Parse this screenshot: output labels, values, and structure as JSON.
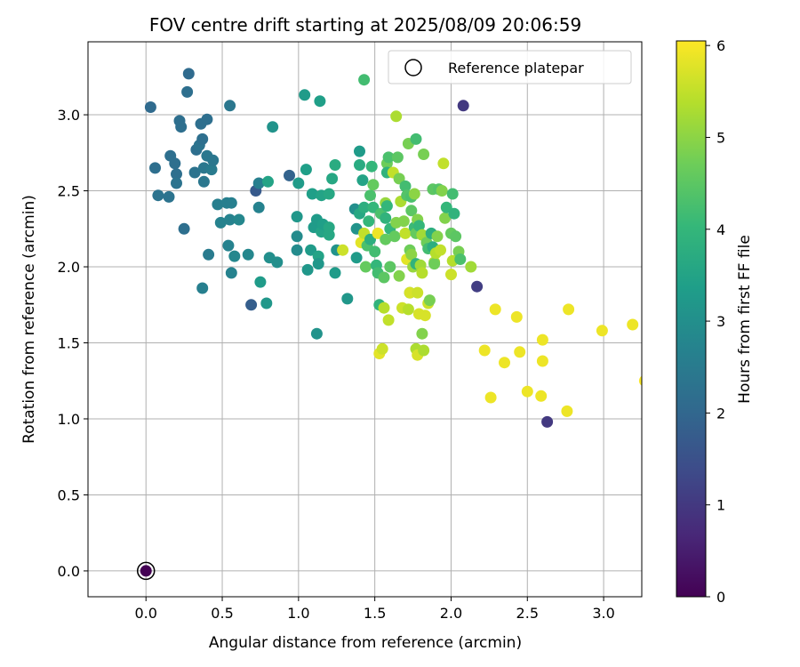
{
  "chart_data": {
    "type": "scatter",
    "title": "FOV centre drift starting at 2025/08/09 20:06:59",
    "xlabel": "Angular distance from reference (arcmin)",
    "ylabel": "Rotation from reference (arcmin)",
    "xlim": [
      -0.38,
      3.25
    ],
    "ylim": [
      -0.17,
      3.48
    ],
    "xticks": [
      "0.0",
      "0.5",
      "1.0",
      "1.5",
      "2.0",
      "2.5",
      "3.0"
    ],
    "xtick_values": [
      0.0,
      0.5,
      1.0,
      1.5,
      2.0,
      2.5,
      3.0
    ],
    "yticks": [
      "0.0",
      "0.5",
      "1.0",
      "1.5",
      "2.0",
      "2.5",
      "3.0"
    ],
    "ytick_values": [
      0.0,
      0.5,
      1.0,
      1.5,
      2.0,
      2.5,
      3.0
    ],
    "grid": true,
    "legend": {
      "position": "top-right",
      "entries": [
        "Reference platepar"
      ]
    },
    "colorbar": {
      "label": "Hours from first FF file",
      "range": [
        0,
        6.05
      ],
      "ticks": [
        "0",
        "1",
        "2",
        "3",
        "4",
        "5",
        "6"
      ],
      "tick_values": [
        0,
        1,
        2,
        3,
        4,
        5,
        6
      ],
      "colormap": "viridis"
    },
    "reference": {
      "x": 0.0,
      "y": 0.0,
      "hours": 0.0
    },
    "points": [
      [
        0.03,
        3.05,
        2.1
      ],
      [
        0.06,
        2.65,
        2.2
      ],
      [
        0.08,
        2.47,
        2.3
      ],
      [
        0.15,
        2.46,
        2.3
      ],
      [
        0.16,
        2.73,
        2.2
      ],
      [
        0.19,
        2.68,
        2.2
      ],
      [
        0.2,
        2.61,
        2.2
      ],
      [
        0.2,
        2.55,
        2.3
      ],
      [
        0.22,
        2.96,
        2.2
      ],
      [
        0.23,
        2.92,
        2.2
      ],
      [
        0.25,
        2.25,
        2.2
      ],
      [
        0.27,
        3.15,
        2.2
      ],
      [
        0.28,
        3.27,
        2.1
      ],
      [
        0.32,
        2.62,
        2.3
      ],
      [
        0.33,
        2.77,
        2.2
      ],
      [
        0.35,
        2.8,
        2.3
      ],
      [
        0.36,
        2.94,
        2.2
      ],
      [
        0.37,
        2.84,
        2.2
      ],
      [
        0.37,
        1.86,
        2.6
      ],
      [
        0.38,
        2.56,
        2.4
      ],
      [
        0.38,
        2.65,
        2.4
      ],
      [
        0.4,
        2.97,
        2.2
      ],
      [
        0.4,
        2.73,
        2.4
      ],
      [
        0.41,
        2.08,
        2.5
      ],
      [
        0.43,
        2.64,
        2.5
      ],
      [
        0.44,
        2.7,
        2.4
      ],
      [
        0.47,
        2.41,
        2.6
      ],
      [
        0.49,
        2.29,
        2.7
      ],
      [
        0.53,
        2.42,
        2.6
      ],
      [
        0.54,
        2.14,
        2.7
      ],
      [
        0.55,
        3.06,
        2.4
      ],
      [
        0.55,
        2.31,
        2.7
      ],
      [
        0.56,
        1.96,
        2.7
      ],
      [
        0.56,
        2.42,
        2.6
      ],
      [
        0.58,
        2.07,
        2.8
      ],
      [
        0.61,
        2.31,
        2.8
      ],
      [
        0.67,
        2.08,
        2.8
      ],
      [
        0.69,
        1.75,
        1.8
      ],
      [
        0.72,
        2.5,
        1.7
      ],
      [
        0.74,
        2.55,
        2.6
      ],
      [
        0.74,
        2.39,
        2.7
      ],
      [
        0.75,
        1.9,
        3.3
      ],
      [
        0.79,
        1.76,
        3.2
      ],
      [
        0.8,
        2.56,
        3.5
      ],
      [
        0.81,
        2.06,
        3.0
      ],
      [
        0.83,
        2.92,
        3.1
      ],
      [
        0.86,
        2.03,
        3.0
      ],
      [
        0.94,
        2.6,
        1.9
      ],
      [
        0.99,
        2.33,
        3.2
      ],
      [
        0.99,
        2.11,
        2.9
      ],
      [
        0.99,
        2.2,
        2.9
      ],
      [
        1.0,
        2.55,
        3.3
      ],
      [
        1.04,
        3.13,
        3.3
      ],
      [
        1.05,
        2.64,
        3.4
      ],
      [
        1.06,
        1.98,
        3.2
      ],
      [
        1.08,
        2.11,
        3.3
      ],
      [
        1.09,
        2.48,
        3.4
      ],
      [
        1.1,
        2.26,
        3.3
      ],
      [
        1.12,
        1.56,
        3.1
      ],
      [
        1.12,
        2.31,
        3.3
      ],
      [
        1.13,
        2.07,
        3.5
      ],
      [
        1.13,
        2.02,
        3.2
      ],
      [
        1.14,
        3.09,
        3.4
      ],
      [
        1.15,
        2.47,
        3.5
      ],
      [
        1.15,
        2.23,
        3.5
      ],
      [
        1.16,
        2.28,
        3.4
      ],
      [
        1.2,
        2.21,
        3.6
      ],
      [
        1.2,
        2.48,
        3.6
      ],
      [
        1.2,
        2.26,
        3.6
      ],
      [
        1.22,
        2.58,
        3.6
      ],
      [
        1.24,
        1.96,
        3.3
      ],
      [
        1.24,
        2.67,
        3.7
      ],
      [
        1.25,
        2.11,
        3.1
      ],
      [
        1.29,
        2.11,
        5.6
      ],
      [
        1.32,
        1.79,
        3.2
      ],
      [
        1.37,
        2.38,
        3.0
      ],
      [
        1.38,
        2.25,
        3.1
      ],
      [
        1.38,
        2.06,
        3.3
      ],
      [
        1.4,
        2.76,
        3.3
      ],
      [
        1.4,
        2.67,
        3.7
      ],
      [
        1.4,
        2.35,
        3.6
      ],
      [
        1.41,
        2.16,
        5.8
      ],
      [
        1.42,
        2.57,
        3.5
      ],
      [
        1.43,
        2.22,
        5.5
      ],
      [
        1.43,
        2.39,
        3.8
      ],
      [
        1.43,
        3.23,
        4.2
      ],
      [
        1.44,
        2.0,
        4.6
      ],
      [
        1.45,
        2.14,
        4.3
      ],
      [
        1.46,
        2.3,
        4.0
      ],
      [
        1.47,
        2.18,
        3.8
      ],
      [
        1.47,
        2.47,
        4.3
      ],
      [
        1.48,
        2.66,
        4.0
      ],
      [
        1.49,
        2.39,
        4.0
      ],
      [
        1.49,
        2.54,
        4.6
      ],
      [
        1.5,
        2.1,
        4.2
      ],
      [
        1.51,
        2.01,
        4.0
      ],
      [
        1.52,
        1.96,
        4.2
      ],
      [
        1.52,
        2.22,
        5.9
      ],
      [
        1.53,
        1.75,
        3.9
      ],
      [
        1.53,
        1.43,
        5.8
      ],
      [
        1.54,
        2.35,
        4.3
      ],
      [
        1.55,
        1.46,
        5.6
      ],
      [
        1.56,
        1.73,
        5.4
      ],
      [
        1.56,
        1.93,
        4.5
      ],
      [
        1.57,
        2.18,
        4.6
      ],
      [
        1.57,
        2.32,
        3.9
      ],
      [
        1.57,
        2.42,
        5.1
      ],
      [
        1.58,
        2.68,
        4.7
      ],
      [
        1.58,
        2.4,
        4.0
      ],
      [
        1.58,
        2.62,
        3.9
      ],
      [
        1.59,
        1.65,
        5.5
      ],
      [
        1.59,
        2.72,
        4.3
      ],
      [
        1.6,
        2.0,
        4.5
      ],
      [
        1.6,
        2.25,
        4.0
      ],
      [
        1.62,
        2.62,
        5.5
      ],
      [
        1.63,
        2.2,
        4.6
      ],
      [
        1.64,
        2.29,
        4.9
      ],
      [
        1.64,
        2.99,
        5.3
      ],
      [
        1.65,
        2.72,
        4.5
      ],
      [
        1.66,
        2.58,
        4.8
      ],
      [
        1.66,
        1.94,
        4.9
      ],
      [
        1.67,
        2.43,
        5.3
      ],
      [
        1.68,
        1.73,
        5.6
      ],
      [
        1.69,
        2.3,
        4.9
      ],
      [
        1.7,
        2.53,
        4.2
      ],
      [
        1.7,
        2.22,
        5.5
      ],
      [
        1.71,
        2.05,
        5.8
      ],
      [
        1.71,
        2.47,
        4.4
      ],
      [
        1.72,
        1.72,
        5.4
      ],
      [
        1.72,
        2.81,
        4.8
      ],
      [
        1.73,
        1.83,
        4.4
      ],
      [
        1.73,
        2.11,
        4.7
      ],
      [
        1.73,
        1.83,
        5.7
      ],
      [
        1.74,
        2.46,
        4.3
      ],
      [
        1.74,
        2.37,
        4.5
      ],
      [
        1.74,
        2.08,
        5.0
      ],
      [
        1.75,
        2.0,
        5.1
      ],
      [
        1.76,
        2.26,
        4.1
      ],
      [
        1.76,
        2.48,
        5.0
      ],
      [
        1.77,
        2.02,
        3.9
      ],
      [
        1.77,
        2.84,
        4.2
      ],
      [
        1.77,
        2.22,
        4.6
      ],
      [
        1.77,
        1.46,
        5.3
      ],
      [
        1.78,
        1.42,
        5.7
      ],
      [
        1.78,
        2.31,
        5.6
      ],
      [
        1.78,
        2.31,
        4.9
      ],
      [
        1.78,
        1.83,
        5.6
      ],
      [
        1.79,
        1.69,
        5.7
      ],
      [
        1.79,
        2.27,
        4.0
      ],
      [
        1.8,
        2.01,
        5.2
      ],
      [
        1.81,
        1.96,
        5.4
      ],
      [
        1.81,
        1.56,
        4.9
      ],
      [
        1.81,
        2.21,
        5.2
      ],
      [
        1.82,
        1.45,
        5.3
      ],
      [
        1.82,
        2.74,
        4.8
      ],
      [
        1.83,
        1.68,
        5.7
      ],
      [
        1.84,
        2.16,
        4.7
      ],
      [
        1.85,
        2.12,
        4.2
      ],
      [
        1.85,
        1.76,
        5.6
      ],
      [
        1.86,
        1.78,
        4.8
      ],
      [
        1.87,
        2.22,
        3.8
      ],
      [
        1.88,
        2.13,
        3.8
      ],
      [
        1.88,
        2.51,
        4.5
      ],
      [
        1.89,
        2.03,
        5.3
      ],
      [
        1.89,
        2.02,
        4.7
      ],
      [
        1.9,
        2.09,
        5.4
      ],
      [
        1.91,
        2.2,
        4.9
      ],
      [
        1.92,
        2.51,
        4.4
      ],
      [
        1.93,
        2.11,
        5.5
      ],
      [
        1.94,
        2.5,
        4.9
      ],
      [
        1.95,
        2.68,
        5.5
      ],
      [
        1.96,
        2.32,
        4.9
      ],
      [
        1.97,
        2.39,
        4.0
      ],
      [
        2.0,
        1.95,
        5.6
      ],
      [
        2.0,
        2.22,
        4.6
      ],
      [
        2.01,
        2.48,
        4.2
      ],
      [
        2.01,
        2.04,
        5.4
      ],
      [
        2.02,
        2.35,
        3.9
      ],
      [
        2.03,
        2.2,
        4.5
      ],
      [
        2.05,
        2.1,
        4.8
      ],
      [
        2.06,
        2.05,
        4.3
      ],
      [
        2.08,
        3.06,
        1.0
      ],
      [
        2.13,
        2.0,
        5.2
      ],
      [
        2.17,
        1.87,
        1.1
      ],
      [
        2.22,
        1.45,
        5.9
      ],
      [
        2.26,
        1.14,
        5.9
      ],
      [
        2.29,
        1.72,
        5.9
      ],
      [
        2.35,
        1.37,
        5.9
      ],
      [
        2.43,
        1.67,
        5.9
      ],
      [
        2.45,
        1.44,
        5.9
      ],
      [
        2.5,
        1.18,
        5.9
      ],
      [
        2.59,
        1.15,
        5.9
      ],
      [
        2.6,
        1.52,
        5.9
      ],
      [
        2.6,
        1.38,
        5.9
      ],
      [
        2.63,
        0.98,
        1.0
      ],
      [
        2.76,
        1.05,
        5.9
      ],
      [
        2.77,
        1.72,
        5.9
      ],
      [
        2.99,
        1.58,
        5.9
      ],
      [
        3.19,
        1.62,
        5.9
      ],
      [
        3.27,
        1.25,
        6.0
      ]
    ]
  }
}
